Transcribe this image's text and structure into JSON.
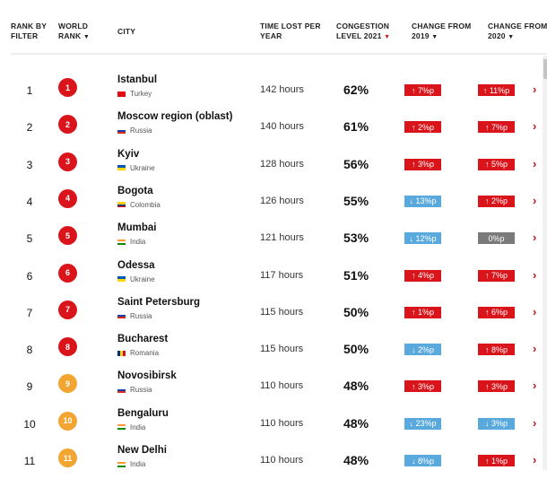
{
  "headers": {
    "rank_by_filter": [
      "RANK BY",
      "FILTER"
    ],
    "world_rank": [
      "WORLD",
      "RANK"
    ],
    "city": "CITY",
    "time_lost": [
      "TIME LOST PER",
      "YEAR"
    ],
    "congestion": [
      "CONGESTION",
      "LEVEL 2021"
    ],
    "change_2019": [
      "CHANGE FROM",
      "2019"
    ],
    "change_2020": [
      "CHANGE FROM",
      "2020"
    ],
    "sort_icon": "▼"
  },
  "colors": {
    "up": "#d9141b",
    "down": "#5aa9dc",
    "zero": "#7a7a7a",
    "rank_red": "#d9141b",
    "rank_orange": "#f2a530"
  },
  "rows": [
    {
      "rank": "1",
      "world_rank": "1",
      "city": "Istanbul",
      "country": "Turkey",
      "time": "142 hours",
      "congestion": "62%",
      "c2019": "↑ 7%p",
      "d2019": "up",
      "c2020": "↑ 11%p",
      "d2020": "up"
    },
    {
      "rank": "2",
      "world_rank": "2",
      "city": "Moscow region (oblast)",
      "country": "Russia",
      "time": "140 hours",
      "congestion": "61%",
      "c2019": "↑ 2%p",
      "d2019": "up",
      "c2020": "↑ 7%p",
      "d2020": "up"
    },
    {
      "rank": "3",
      "world_rank": "3",
      "city": "Kyiv",
      "country": "Ukraine",
      "time": "128 hours",
      "congestion": "56%",
      "c2019": "↑ 3%p",
      "d2019": "up",
      "c2020": "↑ 5%p",
      "d2020": "up"
    },
    {
      "rank": "4",
      "world_rank": "4",
      "city": "Bogota",
      "country": "Colombia",
      "time": "126 hours",
      "congestion": "55%",
      "c2019": "↓ 13%p",
      "d2019": "down",
      "c2020": "↑ 2%p",
      "d2020": "up"
    },
    {
      "rank": "5",
      "world_rank": "5",
      "city": "Mumbai",
      "country": "India",
      "time": "121 hours",
      "congestion": "53%",
      "c2019": "↓ 12%p",
      "d2019": "down",
      "c2020": "0%p",
      "d2020": "zero"
    },
    {
      "rank": "6",
      "world_rank": "6",
      "city": "Odessa",
      "country": "Ukraine",
      "time": "117 hours",
      "congestion": "51%",
      "c2019": "↑ 4%p",
      "d2019": "up",
      "c2020": "↑ 7%p",
      "d2020": "up"
    },
    {
      "rank": "7",
      "world_rank": "7",
      "city": "Saint Petersburg",
      "country": "Russia",
      "time": "115 hours",
      "congestion": "50%",
      "c2019": "↑ 1%p",
      "d2019": "up",
      "c2020": "↑ 6%p",
      "d2020": "up"
    },
    {
      "rank": "8",
      "world_rank": "8",
      "city": "Bucharest",
      "country": "Romania",
      "time": "115 hours",
      "congestion": "50%",
      "c2019": "↓ 2%p",
      "d2019": "down",
      "c2020": "↑ 8%p",
      "d2020": "up"
    },
    {
      "rank": "9",
      "world_rank": "9",
      "city": "Novosibirsk",
      "country": "Russia",
      "time": "110 hours",
      "congestion": "48%",
      "c2019": "↑ 3%p",
      "d2019": "up",
      "c2020": "↑ 3%p",
      "d2020": "up"
    },
    {
      "rank": "10",
      "world_rank": "10",
      "city": "Bengaluru",
      "country": "India",
      "time": "110 hours",
      "congestion": "48%",
      "c2019": "↓ 23%p",
      "d2019": "down",
      "c2020": "↓ 3%p",
      "d2020": "down"
    },
    {
      "rank": "11",
      "world_rank": "11",
      "city": "New Delhi",
      "country": "India",
      "time": "110 hours",
      "congestion": "48%",
      "c2019": "↓ 8%p",
      "d2019": "down",
      "c2020": "↑ 1%p",
      "d2020": "up"
    }
  ]
}
